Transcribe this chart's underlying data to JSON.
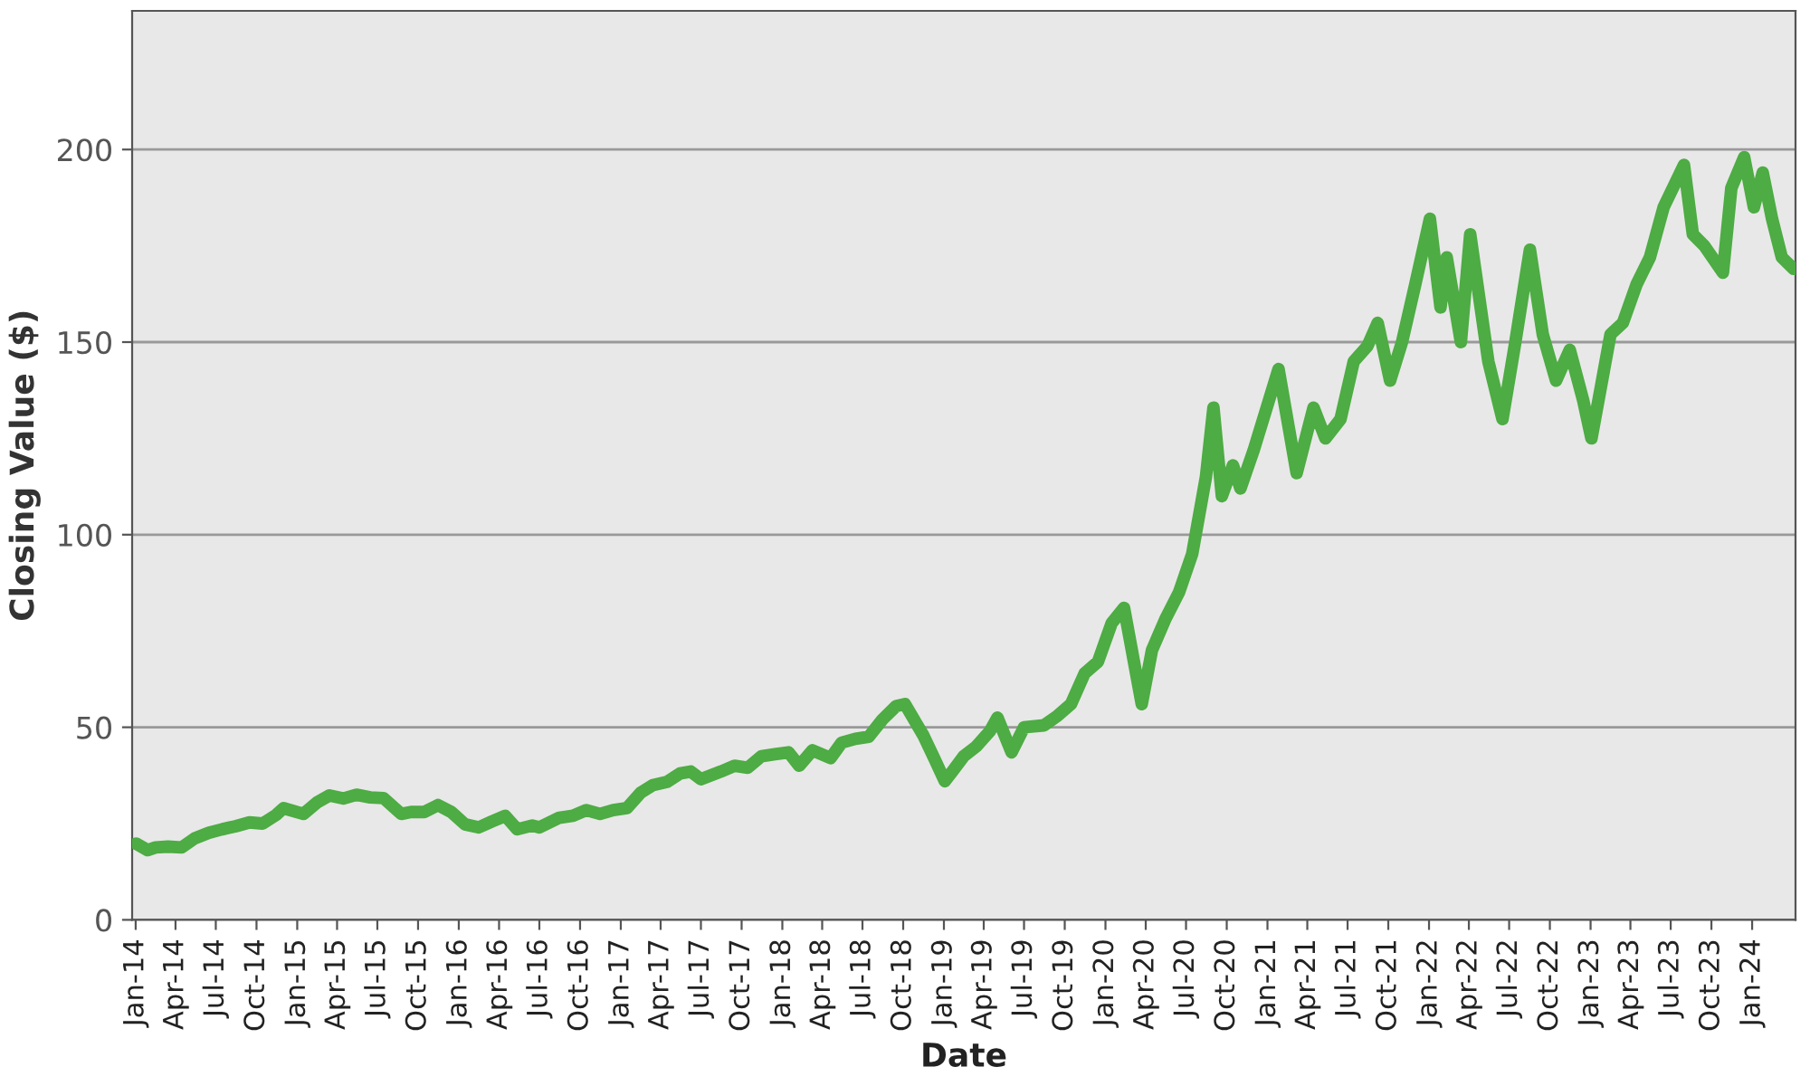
{
  "chart_data": {
    "type": "line",
    "xlabel": "Date",
    "ylabel": "Closing Value ($)",
    "xlim": [
      "2013-12-24",
      "2024-04-08"
    ],
    "ylim": [
      0,
      236
    ],
    "yticks": [
      0,
      50,
      100,
      150,
      200
    ],
    "grid": "y",
    "marker": "none",
    "line_style": "solid",
    "xticks": [
      {
        "value": "2014-01-01",
        "label": "Jan-14"
      },
      {
        "value": "2014-04-01",
        "label": "Apr-14"
      },
      {
        "value": "2014-07-01",
        "label": "Jul-14"
      },
      {
        "value": "2014-10-01",
        "label": "Oct-14"
      },
      {
        "value": "2015-01-01",
        "label": "Jan-15"
      },
      {
        "value": "2015-04-01",
        "label": "Apr-15"
      },
      {
        "value": "2015-07-01",
        "label": "Jul-15"
      },
      {
        "value": "2015-10-01",
        "label": "Oct-15"
      },
      {
        "value": "2016-01-01",
        "label": "Jan-16"
      },
      {
        "value": "2016-04-01",
        "label": "Apr-16"
      },
      {
        "value": "2016-07-01",
        "label": "Jul-16"
      },
      {
        "value": "2016-10-01",
        "label": "Oct-16"
      },
      {
        "value": "2017-01-01",
        "label": "Jan-17"
      },
      {
        "value": "2017-04-01",
        "label": "Apr-17"
      },
      {
        "value": "2017-07-01",
        "label": "Jul-17"
      },
      {
        "value": "2017-10-01",
        "label": "Oct-17"
      },
      {
        "value": "2018-01-01",
        "label": "Jan-18"
      },
      {
        "value": "2018-04-01",
        "label": "Apr-18"
      },
      {
        "value": "2018-07-01",
        "label": "Jul-18"
      },
      {
        "value": "2018-10-01",
        "label": "Oct-18"
      },
      {
        "value": "2019-01-01",
        "label": "Jan-19"
      },
      {
        "value": "2019-04-01",
        "label": "Apr-19"
      },
      {
        "value": "2019-07-01",
        "label": "Jul-19"
      },
      {
        "value": "2019-10-01",
        "label": "Oct-19"
      },
      {
        "value": "2020-01-01",
        "label": "Jan-20"
      },
      {
        "value": "2020-04-01",
        "label": "Apr-20"
      },
      {
        "value": "2020-07-01",
        "label": "Jul-20"
      },
      {
        "value": "2020-10-01",
        "label": "Oct-20"
      },
      {
        "value": "2021-01-01",
        "label": "Jan-21"
      },
      {
        "value": "2021-04-01",
        "label": "Apr-21"
      },
      {
        "value": "2021-07-01",
        "label": "Jul-21"
      },
      {
        "value": "2021-10-01",
        "label": "Oct-21"
      },
      {
        "value": "2022-01-01",
        "label": "Jan-22"
      },
      {
        "value": "2022-04-01",
        "label": "Apr-22"
      },
      {
        "value": "2022-07-01",
        "label": "Jul-22"
      },
      {
        "value": "2022-10-01",
        "label": "Oct-22"
      },
      {
        "value": "2023-01-01",
        "label": "Jan-23"
      },
      {
        "value": "2023-04-01",
        "label": "Apr-23"
      },
      {
        "value": "2023-07-01",
        "label": "Jul-23"
      },
      {
        "value": "2023-10-01",
        "label": "Oct-23"
      },
      {
        "value": "2024-01-01",
        "label": "Jan-24"
      }
    ],
    "series": [
      {
        "color": "#4dac43",
        "x": [
          "2014-01-02",
          "2014-01-28",
          "2014-02-15",
          "2014-03-15",
          "2014-04-15",
          "2014-05-15",
          "2014-06-15",
          "2014-07-15",
          "2014-08-15",
          "2014-09-15",
          "2014-10-15",
          "2014-11-15",
          "2014-12-01",
          "2015-01-15",
          "2015-02-15",
          "2015-03-15",
          "2015-04-15",
          "2015-05-15",
          "2015-06-15",
          "2015-07-15",
          "2015-08-24",
          "2015-09-15",
          "2015-10-15",
          "2015-11-15",
          "2015-12-15",
          "2016-01-15",
          "2016-02-15",
          "2016-03-15",
          "2016-04-15",
          "2016-05-12",
          "2016-06-15",
          "2016-07-01",
          "2016-08-15",
          "2016-09-15",
          "2016-10-15",
          "2016-11-15",
          "2016-12-15",
          "2017-01-15",
          "2017-02-15",
          "2017-03-15",
          "2017-04-15",
          "2017-05-15",
          "2017-06-08",
          "2017-07-01",
          "2017-08-15",
          "2017-09-15",
          "2017-10-15",
          "2017-11-15",
          "2017-12-15",
          "2018-01-15",
          "2018-02-08",
          "2018-03-10",
          "2018-04-20",
          "2018-05-15",
          "2018-06-15",
          "2018-07-15",
          "2018-08-15",
          "2018-09-15",
          "2018-10-05",
          "2018-11-15",
          "2018-12-10",
          "2019-01-03",
          "2019-01-20",
          "2019-02-15",
          "2019-03-15",
          "2019-04-15",
          "2019-05-02",
          "2019-06-03",
          "2019-07-01",
          "2019-08-15",
          "2019-09-15",
          "2019-10-15",
          "2019-11-15",
          "2019-12-15",
          "2020-01-15",
          "2020-02-12",
          "2020-03-23",
          "2020-04-15",
          "2020-05-15",
          "2020-06-15",
          "2020-07-15",
          "2020-08-15",
          "2020-09-01",
          "2020-09-20",
          "2020-10-15",
          "2020-11-01",
          "2020-12-01",
          "2021-01-26",
          "2021-03-08",
          "2021-04-15",
          "2021-05-12",
          "2021-06-15",
          "2021-07-15",
          "2021-08-15",
          "2021-09-07",
          "2021-10-05",
          "2021-11-01",
          "2021-12-01",
          "2022-01-03",
          "2022-01-27",
          "2022-02-10",
          "2022-03-14",
          "2022-04-04",
          "2022-05-15",
          "2022-06-16",
          "2022-07-15",
          "2022-08-17",
          "2022-09-15",
          "2022-10-15",
          "2022-11-15",
          "2022-12-15",
          "2023-01-03",
          "2023-02-15",
          "2023-03-15",
          "2023-04-15",
          "2023-05-15",
          "2023-06-15",
          "2023-07-31",
          "2023-08-20",
          "2023-09-15",
          "2023-10-27",
          "2023-11-15",
          "2023-12-14",
          "2024-01-05",
          "2024-01-25",
          "2024-02-15",
          "2024-03-08",
          "2024-04-04"
        ],
        "values": [
          19.8,
          18.1,
          18.8,
          19.0,
          18.8,
          21.2,
          22.6,
          23.5,
          24.3,
          25.3,
          25.0,
          27.3,
          29.0,
          27.5,
          30.5,
          32.3,
          31.5,
          32.5,
          31.8,
          31.6,
          27.5,
          28.0,
          28.0,
          29.8,
          28.0,
          24.8,
          24.0,
          25.5,
          27.0,
          23.5,
          24.5,
          24.0,
          26.5,
          27.0,
          28.5,
          27.5,
          28.5,
          29.0,
          33.0,
          35.0,
          35.8,
          38.0,
          38.5,
          36.5,
          38.5,
          40.0,
          39.5,
          42.5,
          43.0,
          43.5,
          40.0,
          44.0,
          42.0,
          46.0,
          47.0,
          47.5,
          52.0,
          55.5,
          56.0,
          48.0,
          42.0,
          36.0,
          38.5,
          42.5,
          45.0,
          49.0,
          52.5,
          43.5,
          50.0,
          50.5,
          53.0,
          56.0,
          64.0,
          67.0,
          77.0,
          81.0,
          56.0,
          70.0,
          78.0,
          85.0,
          95.0,
          115.0,
          133.0,
          110.0,
          118.0,
          112.0,
          122.0,
          143.0,
          116.0,
          133.0,
          125.0,
          130.0,
          145.0,
          149.0,
          155.0,
          140.0,
          150.0,
          165.0,
          182.0,
          159.0,
          172.0,
          150.0,
          178.0,
          145.0,
          130.0,
          150.0,
          174.0,
          152.0,
          140.0,
          148.0,
          135.0,
          125.0,
          152.0,
          155.0,
          165.0,
          172.0,
          185.0,
          196.0,
          178.0,
          175.0,
          168.0,
          190.0,
          198.0,
          185.0,
          194.0,
          182.0,
          172.0,
          169.0
        ]
      }
    ]
  }
}
